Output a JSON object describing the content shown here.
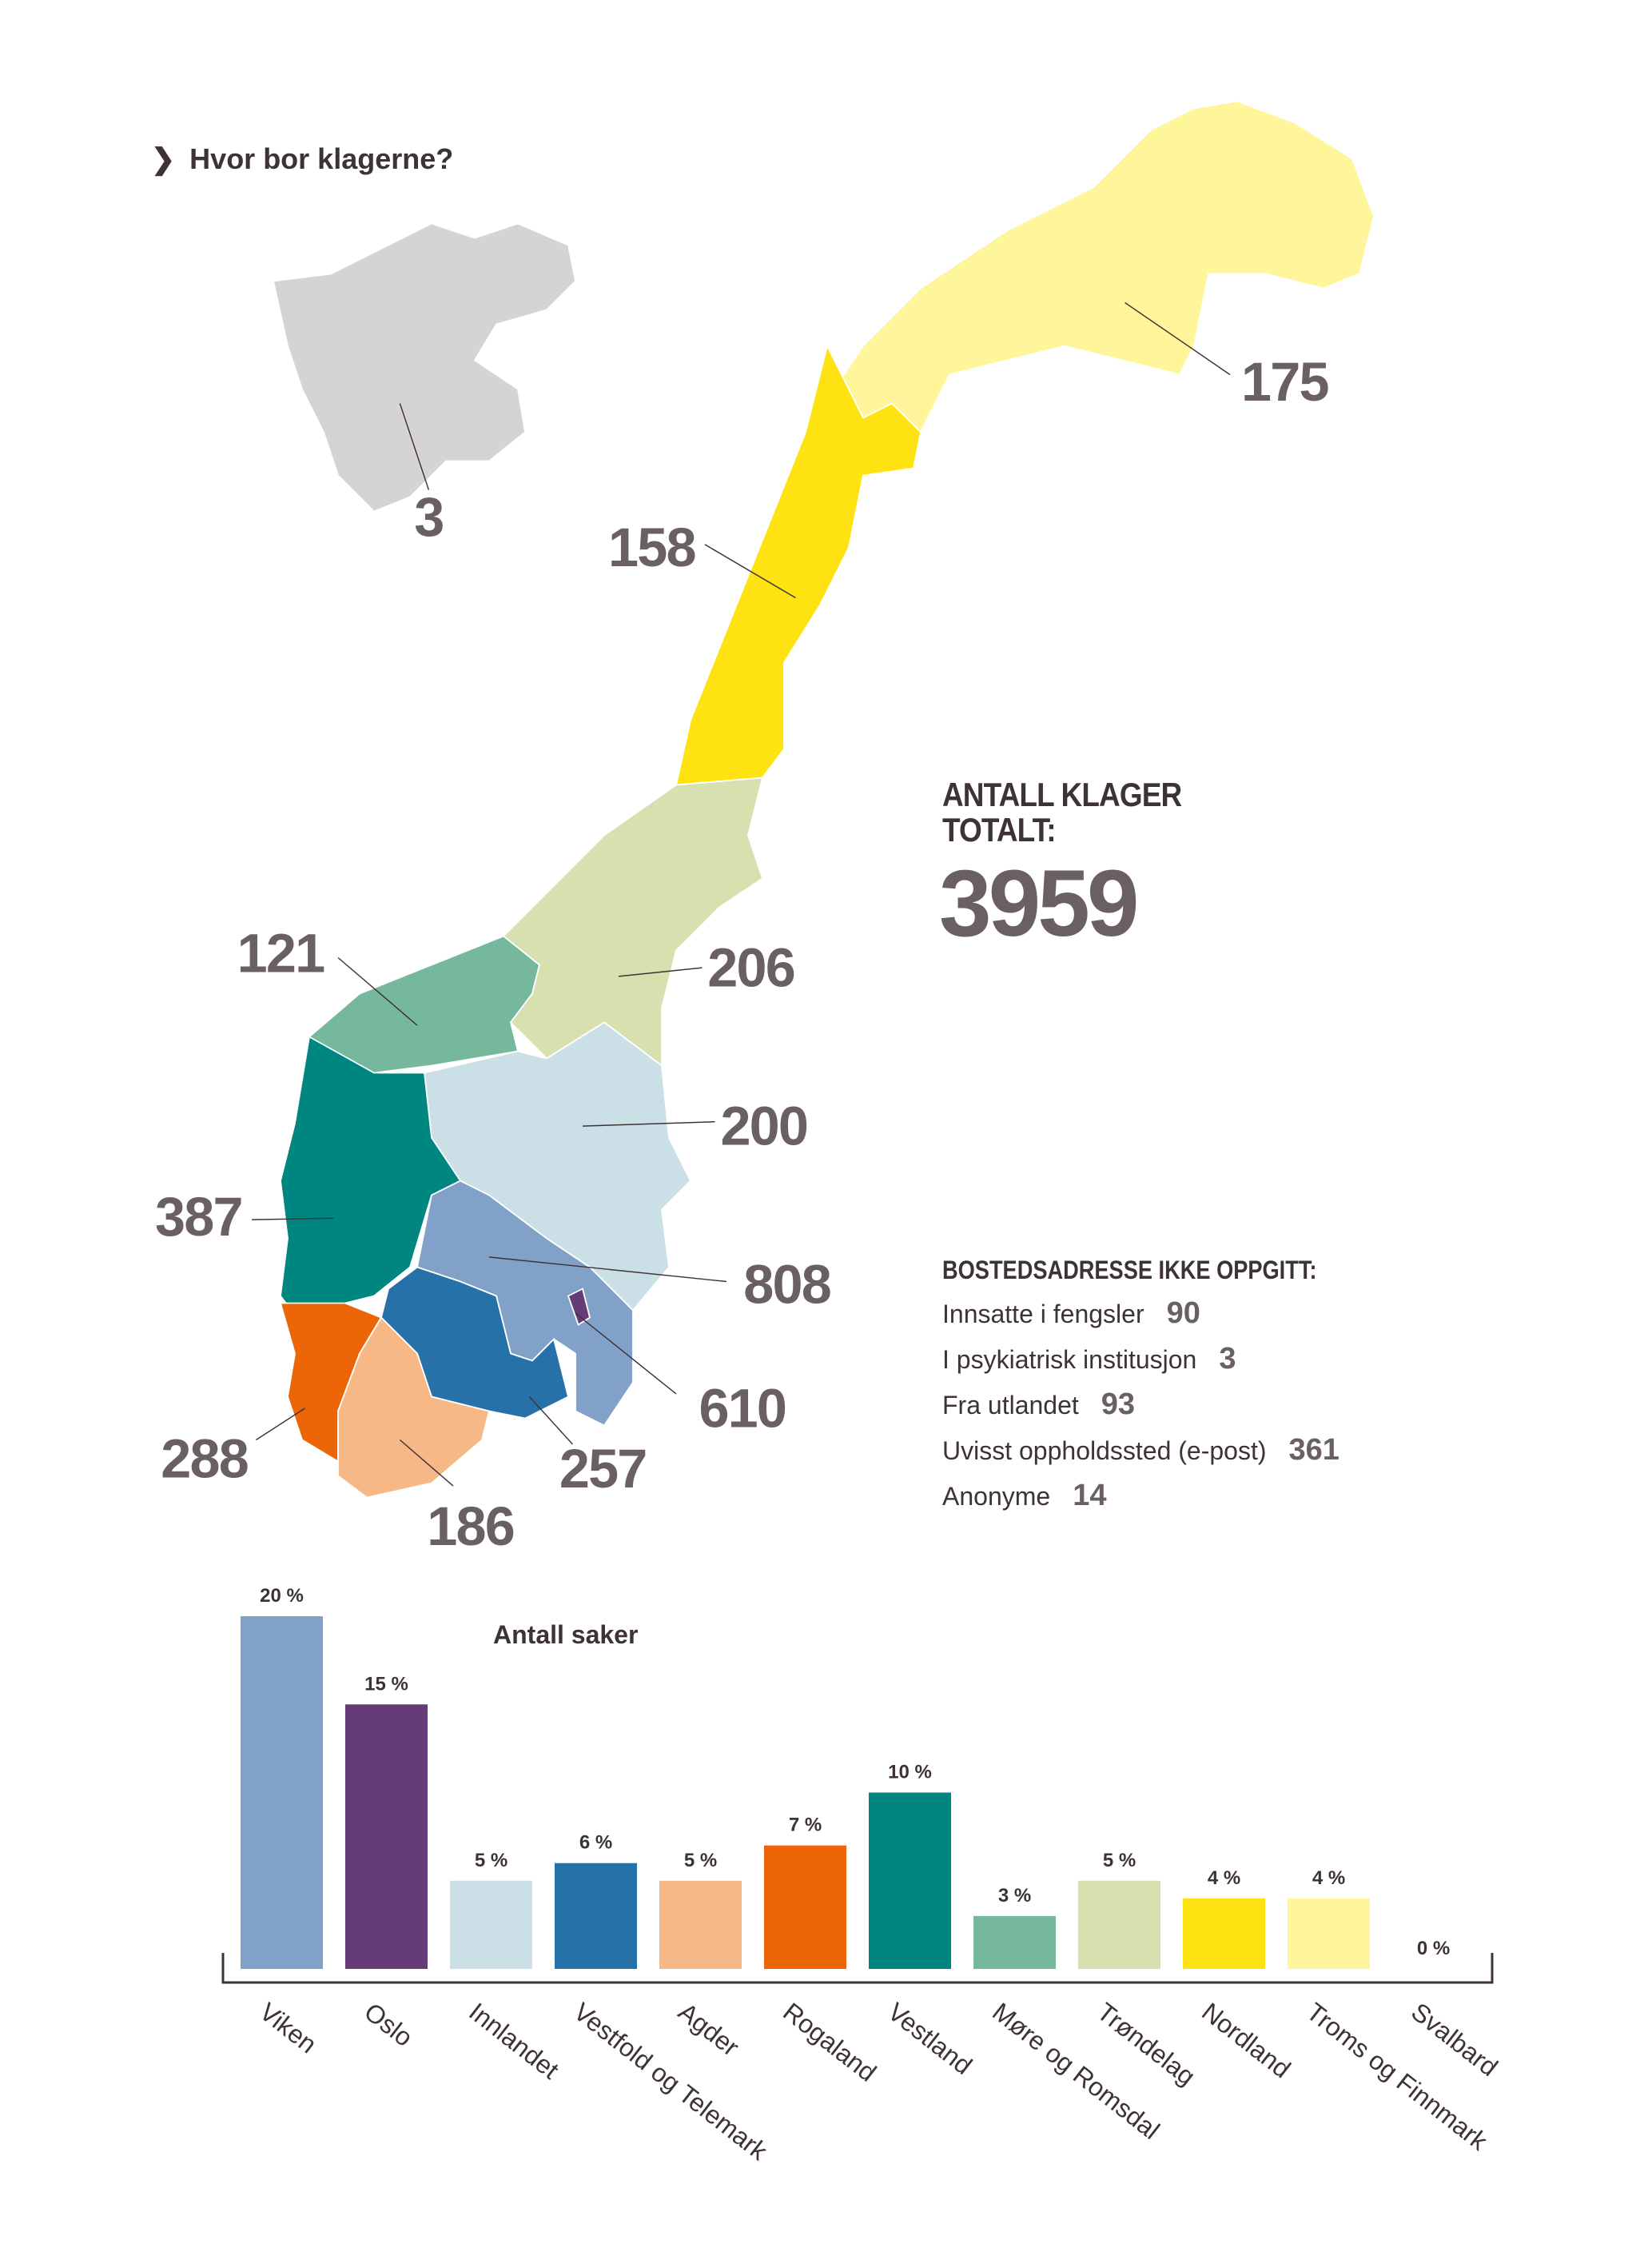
{
  "title": "Hvor bor klagerne?",
  "total": {
    "label_line1": "ANTALL KLAGER",
    "label_line2": "TOTALT:",
    "value": "3959"
  },
  "unknown_address": {
    "heading": "BOSTEDSADRESSE IKKE OPPGITT:",
    "items": [
      {
        "label": "Innsatte i fengsler",
        "value": "90"
      },
      {
        "label": "I psykiatrisk institusjon",
        "value": "3"
      },
      {
        "label": "Fra utlandet",
        "value": "93"
      },
      {
        "label": "Uvisst oppholdssted (e-post)",
        "value": "361"
      },
      {
        "label": "Anonyme",
        "value": "14"
      }
    ]
  },
  "map_regions": [
    {
      "name": "Svalbard",
      "value": "3",
      "color": "#d5d3d4"
    },
    {
      "name": "Troms og Finnmark",
      "value": "175",
      "color": "#fff59a"
    },
    {
      "name": "Nordland",
      "value": "158",
      "color": "#ffe212"
    },
    {
      "name": "Møre og Romsdal",
      "value": "121",
      "color": "#76b89c"
    },
    {
      "name": "Trøndelag",
      "value": "206",
      "color": "#d8e0b0"
    },
    {
      "name": "Innlandet",
      "value": "200",
      "color": "#cadfe6"
    },
    {
      "name": "Vestland",
      "value": "387",
      "color": "#008680"
    },
    {
      "name": "Viken",
      "value": "808",
      "color": "#82a1c8"
    },
    {
      "name": "Oslo",
      "value": "610",
      "color": "#653c78"
    },
    {
      "name": "Rogaland",
      "value": "288",
      "color": "#ec6608"
    },
    {
      "name": "Vestfold og Telemark",
      "value": "257",
      "color": "#2672a8"
    },
    {
      "name": "Agder",
      "value": "186",
      "color": "#f6b886"
    }
  ],
  "chart_data": {
    "type": "bar",
    "title": "Antall saker",
    "categories": [
      "Viken",
      "Oslo",
      "Innlandet",
      "Vestfold og Telemark",
      "Agder",
      "Rogaland",
      "Vestland",
      "Møre og Romsdal",
      "Trøndelag",
      "Nordland",
      "Troms og Finnmark",
      "Svalbard"
    ],
    "values": [
      20,
      15,
      5,
      6,
      5,
      7,
      10,
      3,
      5,
      4,
      4,
      0
    ],
    "data_labels": [
      "20 %",
      "15 %",
      "5 %",
      "6 %",
      "5 %",
      "7 %",
      "10 %",
      "3 %",
      "5 %",
      "4 %",
      "4 %",
      "0 %"
    ],
    "colors": [
      "#82a1c8",
      "#653c78",
      "#cadfe6",
      "#2672a8",
      "#f6b886",
      "#ec6608",
      "#008680",
      "#76b89c",
      "#d8e0b0",
      "#ffe212",
      "#fff59a",
      "#ffffff"
    ],
    "unit": "%",
    "ylim": [
      0,
      20
    ],
    "grid": false
  }
}
